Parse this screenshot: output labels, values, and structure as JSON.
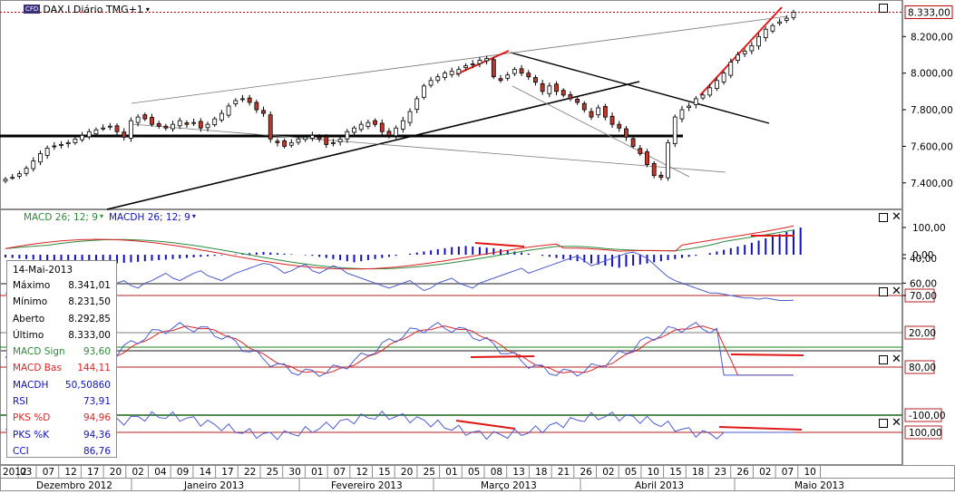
{
  "window": {
    "title": "DAX.I Diário TMG+1",
    "badge": "CFD"
  },
  "price_axis": {
    "current": "8.333,00",
    "ticks": [
      "8.200,00",
      "8.000,00",
      "7.800,00",
      "7.600,00",
      "7.400,00"
    ]
  },
  "panels": {
    "macd": {
      "label_signal": "MACD 26; 12; 9",
      "label_hist": "MACDH 26; 12; 9",
      "ticks": [
        "100,00",
        "0,00"
      ]
    },
    "rsi": {
      "ticks": [
        "70,00",
        "60,00",
        "40,00"
      ]
    },
    "stoch": {
      "ticks": [
        "80,00",
        "20,00"
      ]
    },
    "cci": {
      "ticks": [
        "100,00",
        "-100,00"
      ]
    }
  },
  "colors": {
    "up": "#ffffff",
    "down": "#c0392b",
    "macd_signal": "#2e8b3a",
    "macd_line": "#d22",
    "hist": "#1010c0",
    "rsi": "#4a5bd0",
    "level": "#b22222",
    "level_low": "#1a8a1a",
    "drawn": "#e01818"
  },
  "infobox": {
    "date": "14-Mai-2013",
    "rows": [
      {
        "label": "Máximo",
        "value": "8.341,01",
        "color": "#000"
      },
      {
        "label": "Mínimo",
        "value": "8.231,50",
        "color": "#000"
      },
      {
        "label": "Aberto",
        "value": "8.292,85",
        "color": "#000"
      },
      {
        "label": "Último",
        "value": "8.333,00",
        "color": "#000"
      },
      {
        "label": "MACD Sign",
        "value": "93,60",
        "color": "#2e8b3a"
      },
      {
        "label": "MACD Bas",
        "value": "144,11",
        "color": "#d22"
      },
      {
        "label": "MACDH",
        "value": "50,50860",
        "color": "#1010c0"
      },
      {
        "label": "RSI",
        "value": "73,91",
        "color": "#1010c0"
      },
      {
        "label": "PKS %D",
        "value": "94,96",
        "color": "#d22"
      },
      {
        "label": "PKS %K",
        "value": "94,36",
        "color": "#1010c0"
      },
      {
        "label": "CCI",
        "value": "86,76",
        "color": "#1010c0"
      }
    ]
  },
  "time_axis": {
    "days": [
      "2012",
      "03",
      "07",
      "12",
      "17",
      "20",
      "02",
      "04",
      "09",
      "14",
      "17",
      "22",
      "25",
      "30",
      "01",
      "07",
      "12",
      "15",
      "20",
      "25",
      "01",
      "05",
      "08",
      "13",
      "18",
      "21",
      "26",
      "02",
      "05",
      "10",
      "15",
      "18",
      "23",
      "26",
      "02",
      "07",
      "10"
    ],
    "months": [
      "Dezembro 2012",
      "Janeiro 2013",
      "Fevereiro 2013",
      "Março 2013",
      "Abril 2013",
      "Maio 2013"
    ]
  },
  "chart_data": {
    "type": "candlestick",
    "instrument": "DAX.I",
    "timeframe": "Diário",
    "ylim": [
      7280,
      8360
    ],
    "last_close": 8333.0,
    "approx_closes": [
      7420,
      7430,
      7450,
      7480,
      7520,
      7560,
      7590,
      7600,
      7610,
      7620,
      7640,
      7660,
      7680,
      7690,
      7700,
      7710,
      7680,
      7650,
      7740,
      7760,
      7750,
      7720,
      7710,
      7700,
      7720,
      7740,
      7720,
      7730,
      7700,
      7720,
      7750,
      7780,
      7820,
      7850,
      7860,
      7840,
      7800,
      7780,
      7640,
      7620,
      7600,
      7620,
      7640,
      7650,
      7660,
      7640,
      7610,
      7620,
      7640,
      7680,
      7700,
      7720,
      7730,
      7720,
      7680,
      7660,
      7700,
      7740,
      7790,
      7860,
      7930,
      7960,
      7980,
      8000,
      8010,
      8020,
      8040,
      8050,
      8070,
      8080,
      7980,
      7960,
      7990,
      8020,
      8000,
      7980,
      7950,
      7900,
      7930,
      7900,
      7880,
      7860,
      7840,
      7800,
      7760,
      7810,
      7760,
      7720,
      7700,
      7650,
      7600,
      7560,
      7500,
      7440,
      7430,
      7620,
      7760,
      7800,
      7820,
      7860,
      7880,
      7920,
      7960,
      8000,
      8060,
      8100,
      8120,
      8150,
      8200,
      8240,
      8260,
      8280,
      8300,
      8333
    ],
    "macd_hist_approx": [
      -5,
      -6,
      -7,
      -8,
      -9,
      -10,
      -12,
      -13,
      -14,
      -15,
      -16,
      -17,
      -18,
      -19,
      -18,
      -17,
      -16,
      -15,
      -14,
      -13,
      -12,
      -11,
      -10,
      -9,
      -8,
      -7,
      -6,
      -5,
      -4,
      -3,
      -2,
      -1,
      0,
      1,
      2,
      3,
      4,
      5,
      4,
      3,
      2,
      1,
      0,
      -1,
      -2,
      -4,
      -6,
      -8,
      -10,
      -12,
      -14,
      -12,
      -10,
      -8,
      -6,
      -4,
      -2,
      0,
      2,
      4,
      6,
      8,
      10,
      12,
      14,
      15,
      16,
      15,
      14,
      13,
      12,
      10,
      8,
      6,
      4,
      2,
      0,
      -2,
      -4,
      -6,
      -8,
      -10,
      -12,
      -14,
      -16,
      -18,
      -20,
      -22,
      -24,
      -22,
      -20,
      -18,
      -16,
      -14,
      -12,
      -10,
      -8,
      -6,
      -4,
      -2,
      0,
      3,
      6,
      9,
      12,
      15,
      18,
      22,
      26,
      30,
      34,
      38,
      42,
      46,
      50
    ],
    "rsi_approx": [
      68,
      70,
      66,
      64,
      62,
      68,
      72,
      70,
      65,
      62,
      60,
      58,
      56,
      62,
      66,
      63,
      60,
      58,
      62,
      64,
      60,
      58,
      55,
      52,
      56,
      58,
      55,
      52,
      50,
      54,
      56,
      58,
      55,
      52,
      50,
      48,
      46,
      44,
      45,
      48,
      52,
      50,
      47,
      45,
      50,
      52,
      49,
      46,
      48,
      52,
      54,
      56,
      58,
      60,
      62,
      64,
      62,
      60,
      58,
      62,
      66,
      64,
      60,
      58,
      56,
      60,
      62,
      64,
      60,
      58,
      56,
      54,
      52,
      50,
      48,
      52,
      50,
      48,
      46,
      44,
      42,
      40,
      38,
      42,
      46,
      44,
      42,
      40,
      38,
      36,
      35,
      37,
      40,
      45,
      50,
      55,
      58,
      60,
      62,
      64,
      66,
      68,
      68,
      69,
      70,
      71,
      72,
      72,
      73,
      72,
      73,
      74,
      74,
      73.9
    ],
    "levels": {
      "rsi_upper": 70,
      "stoch_upper": 80,
      "stoch_lower": 20,
      "cci_upper": 100,
      "cci_lower": -100
    }
  }
}
